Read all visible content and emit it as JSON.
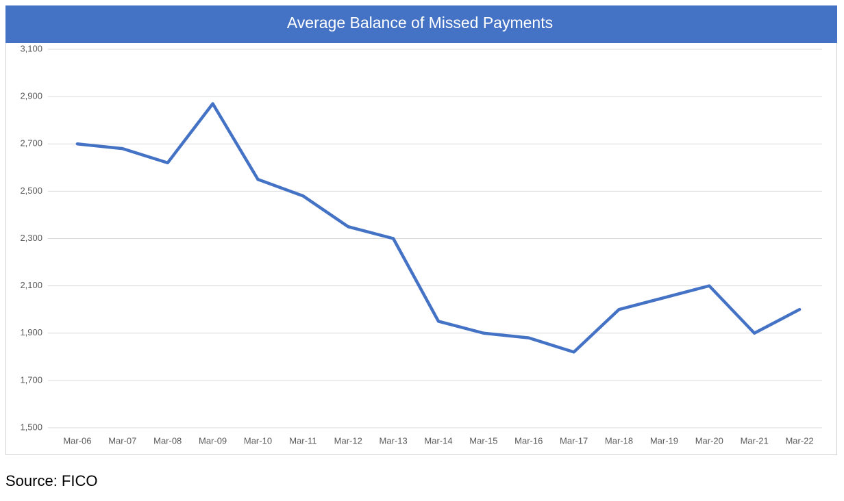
{
  "chart_data": {
    "type": "line",
    "title": "Average Balance of Missed Payments",
    "categories": [
      "Mar-06",
      "Mar-07",
      "Mar-08",
      "Mar-09",
      "Mar-10",
      "Mar-11",
      "Mar-12",
      "Mar-13",
      "Mar-14",
      "Mar-15",
      "Mar-16",
      "Mar-17",
      "Mar-18",
      "Mar-19",
      "Mar-20",
      "Mar-21",
      "Mar-22"
    ],
    "values": [
      2700,
      2680,
      2620,
      2870,
      2550,
      2480,
      2350,
      2300,
      1950,
      1900,
      1880,
      1820,
      2000,
      2050,
      2100,
      1900,
      2000
    ],
    "color": "#4472c4",
    "ylim": [
      1500,
      3100
    ],
    "yticks": [
      {
        "value": 1500,
        "label": "1,500"
      },
      {
        "value": 1700,
        "label": "1,700"
      },
      {
        "value": 1900,
        "label": "1,900"
      },
      {
        "value": 2100,
        "label": "2,100"
      },
      {
        "value": 2300,
        "label": "2,300"
      },
      {
        "value": 2500,
        "label": "2,500"
      },
      {
        "value": 2700,
        "label": "2,700"
      },
      {
        "value": 2900,
        "label": "2,900"
      },
      {
        "value": 3100,
        "label": "3,100"
      }
    ],
    "grid": true,
    "source": "Source: FICO"
  }
}
